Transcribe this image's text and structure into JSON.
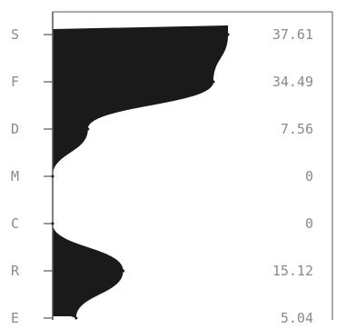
{
  "chart_data": {
    "type": "area",
    "orientation": "horizontal",
    "categories": [
      "S",
      "F",
      "D",
      "M",
      "C",
      "R",
      "E"
    ],
    "values": [
      37.61,
      34.49,
      7.56,
      0,
      0,
      15.12,
      5.04
    ],
    "value_labels": [
      "37.61",
      "34.49",
      "7.56",
      "0",
      "0",
      "15.12",
      "5.04"
    ],
    "xlim": [
      0,
      60
    ],
    "title": "",
    "xlabel": "",
    "ylabel": "",
    "grid": false,
    "colors": {
      "fill": "#1a1a1a",
      "axis": "#555555",
      "text": "#8a8a8a"
    }
  }
}
